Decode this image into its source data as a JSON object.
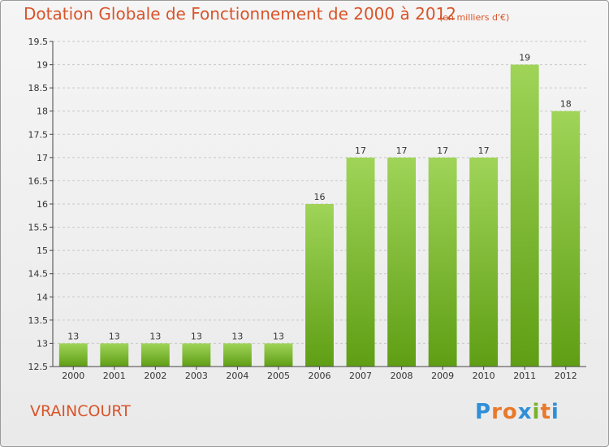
{
  "title": "Dotation Globale de Fonctionnement de 2000 à 2012",
  "subtitle": "(en milliers d'€)",
  "commune": "VRAINCOURT",
  "brand": {
    "letters": [
      "P",
      "r",
      "o",
      "x",
      "i",
      "t",
      "i"
    ],
    "colors": [
      "#2f8fd8",
      "#e8792b",
      "#e8792b",
      "#2f8fd8",
      "#7ab12e",
      "#e8792b",
      "#2f8fd8"
    ]
  },
  "colors": {
    "bar_light": "#9fd458",
    "bar_dark": "#5f9e14",
    "grid": "#c8c8c8",
    "axis": "#444444",
    "accent": "#d9542a"
  },
  "chart_data": {
    "type": "bar",
    "title": "Dotation Globale de Fonctionnement de 2000 à 2012",
    "subtitle": "(en milliers d'€)",
    "categories": [
      "2000",
      "2001",
      "2002",
      "2003",
      "2004",
      "2005",
      "2006",
      "2007",
      "2008",
      "2009",
      "2010",
      "2011",
      "2012"
    ],
    "values": [
      13,
      13,
      13,
      13,
      13,
      13,
      16,
      17,
      17,
      17,
      17,
      19,
      18
    ],
    "data_labels": [
      "13",
      "13",
      "13",
      "13",
      "13",
      "13",
      "16",
      "17",
      "17",
      "17",
      "17",
      "19",
      "18"
    ],
    "ylim": [
      12.5,
      19.5
    ],
    "yticks": [
      12.5,
      13,
      13.5,
      14,
      14.5,
      15,
      15.5,
      16,
      16.5,
      17,
      17.5,
      18,
      18.5,
      19,
      19.5
    ],
    "ytick_labels": [
      "12.5",
      "13",
      "13.5",
      "14",
      "14.5",
      "15",
      "15.5",
      "16",
      "16.5",
      "17",
      "17.5",
      "18",
      "18.5",
      "19",
      "19.5"
    ],
    "xlabel": "",
    "ylabel": "",
    "grid": true,
    "legend": false
  }
}
